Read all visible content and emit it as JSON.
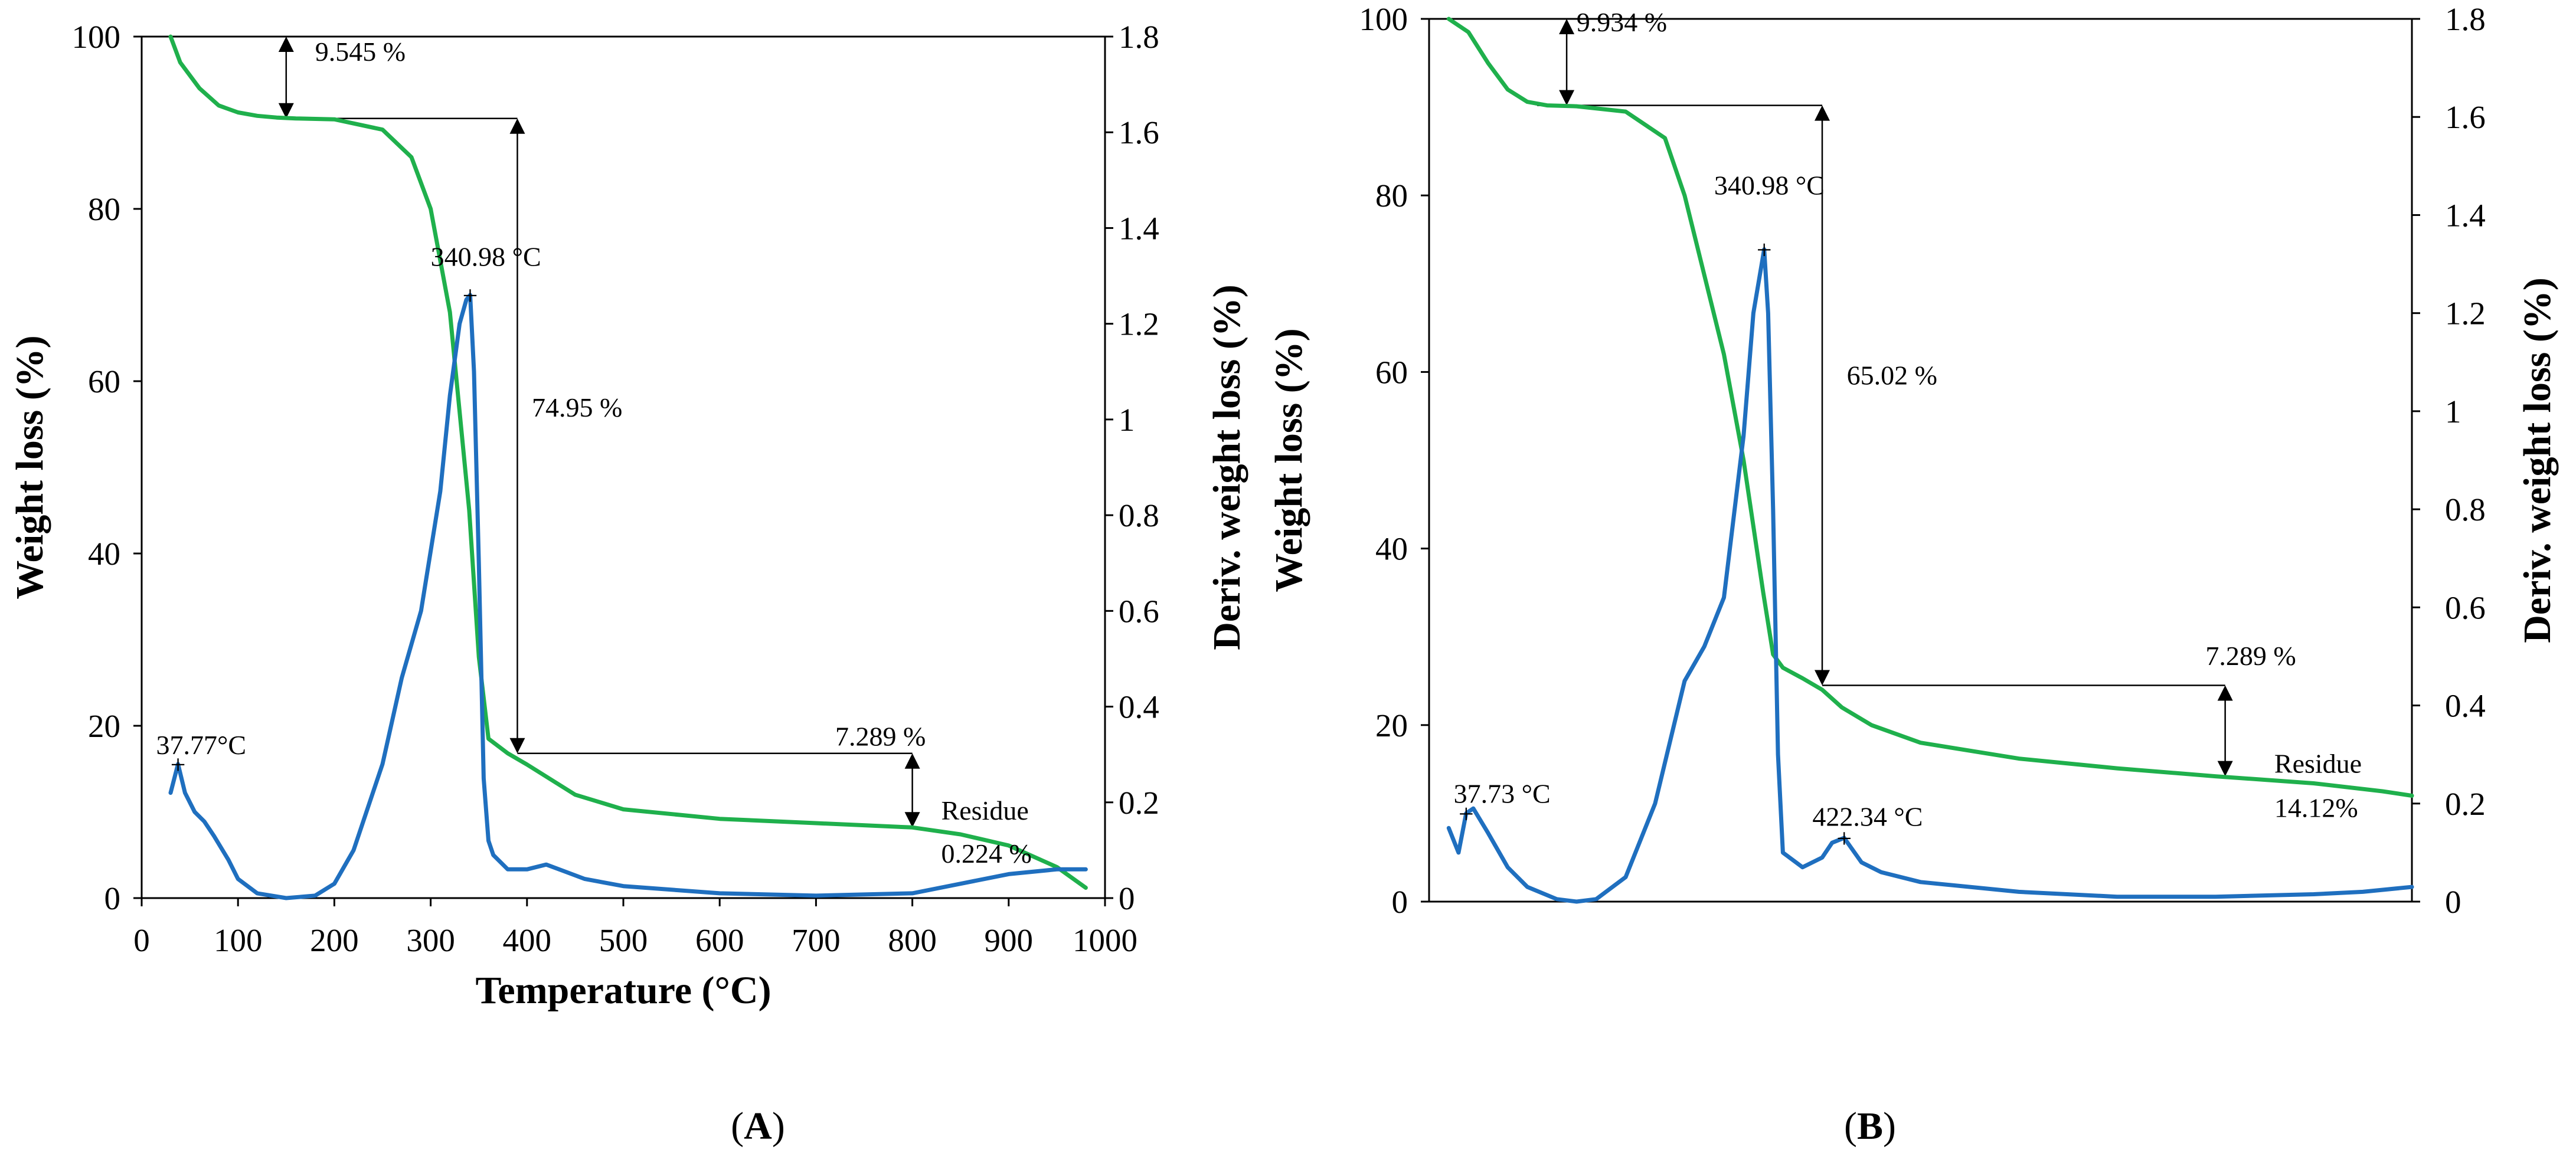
{
  "chart_data": [
    {
      "id": "A",
      "type": "line",
      "panel_label": "A",
      "xlabel": "Temperature (°C)",
      "ylabel_left": "Weight loss (%)",
      "ylabel_right": "Deriv. weight loss (%)",
      "xlim": [
        0,
        1000
      ],
      "ylim_left": [
        0,
        100
      ],
      "ylim_right": [
        0,
        1.8
      ],
      "xticks": [
        0,
        100,
        200,
        300,
        400,
        500,
        600,
        700,
        800,
        900,
        1000
      ],
      "yticks_left": [
        0,
        20,
        40,
        60,
        80,
        100
      ],
      "yticks_right": [
        "0",
        "0.2",
        "0.4",
        "0.6",
        "0.8",
        "1",
        "1.2",
        "1.4",
        "1.6",
        "1.8"
      ],
      "series": [
        {
          "name": "Weight loss",
          "axis": "left",
          "color": "#1fb04c",
          "x": [
            30,
            40,
            60,
            80,
            100,
            120,
            140,
            160,
            200,
            250,
            280,
            300,
            320,
            340,
            350,
            360,
            380,
            400,
            450,
            500,
            600,
            700,
            800,
            850,
            900,
            950,
            980
          ],
          "y": [
            100,
            97,
            94,
            92,
            91.2,
            90.8,
            90.6,
            90.5,
            90.4,
            89.2,
            86,
            80,
            68,
            45,
            28,
            18.5,
            16.8,
            15.5,
            12,
            10.3,
            9.2,
            8.7,
            8.2,
            7.4,
            6.1,
            3.6,
            1.2
          ]
        },
        {
          "name": "Deriv. weight loss",
          "axis": "right",
          "color": "#1f6fbf",
          "x": [
            30,
            37.77,
            45,
            55,
            65,
            75,
            90,
            100,
            120,
            150,
            180,
            200,
            220,
            250,
            270,
            290,
            310,
            320,
            330,
            337,
            340.98,
            345,
            350,
            355,
            360,
            365,
            380,
            400,
            420,
            440,
            460,
            500,
            600,
            700,
            800,
            850,
            900,
            950,
            980
          ],
          "y": [
            0.22,
            0.28,
            0.22,
            0.18,
            0.16,
            0.13,
            0.08,
            0.04,
            0.01,
            0.0,
            0.005,
            0.03,
            0.1,
            0.28,
            0.46,
            0.6,
            0.85,
            1.05,
            1.2,
            1.25,
            1.26,
            1.1,
            0.7,
            0.25,
            0.12,
            0.09,
            0.06,
            0.06,
            0.07,
            0.055,
            0.04,
            0.025,
            0.01,
            0.005,
            0.01,
            0.03,
            0.05,
            0.06,
            0.06
          ]
        }
      ],
      "annotations": [
        {
          "text": "9.545 %",
          "x": 180,
          "y": 97.2
        },
        {
          "text": "340.98 °C",
          "x": 300,
          "y": 73.4
        },
        {
          "text": "74.95 %",
          "x": 405,
          "y": 55.9
        },
        {
          "text": "37.77°C",
          "x": 15,
          "y": 16.7
        },
        {
          "text": "7.289 %",
          "x": 720,
          "y": 17.7
        },
        {
          "text": "Residue",
          "x": 830,
          "y": 9.1
        },
        {
          "text": "0.224 %",
          "x": 830,
          "y": 4.1
        }
      ],
      "marker_labels": [
        {
          "text": "+",
          "x": 340.98,
          "value": 1.26
        },
        {
          "text": "+",
          "x": 37.77,
          "value": 0.28
        }
      ]
    },
    {
      "id": "B",
      "type": "line",
      "panel_label": "B",
      "xlabel": "",
      "ylabel_left": "Weight loss (%)",
      "ylabel_right": "Deriv. weight loss (%)",
      "xlim": [
        0,
        1000
      ],
      "ylim_left": [
        0,
        100
      ],
      "ylim_right": [
        0,
        1.8
      ],
      "xticks": [],
      "yticks_left": [
        0,
        20,
        40,
        60,
        80,
        100
      ],
      "yticks_right": [
        "0",
        "0.2",
        "0.4",
        "0.6",
        "0.8",
        "1",
        "1.2",
        "1.4",
        "1.6",
        "1.8"
      ],
      "series": [
        {
          "name": "Weight loss",
          "axis": "left",
          "color": "#1fb04c",
          "x": [
            20,
            40,
            60,
            80,
            100,
            120,
            150,
            200,
            240,
            260,
            280,
            300,
            320,
            340,
            350,
            360,
            380,
            400,
            420,
            450,
            500,
            600,
            700,
            800,
            900,
            970,
            1000
          ],
          "y": [
            100,
            98.5,
            95,
            92,
            90.6,
            90.2,
            90.1,
            89.5,
            86.5,
            80,
            71,
            62,
            50,
            35,
            28,
            26.5,
            25.3,
            24,
            22,
            20,
            18,
            16.2,
            15.1,
            14.2,
            13.4,
            12.5,
            12
          ]
        },
        {
          "name": "Deriv. weight loss",
          "axis": "right",
          "color": "#1f6fbf",
          "x": [
            20,
            30,
            37.73,
            45,
            60,
            80,
            100,
            130,
            150,
            170,
            200,
            230,
            260,
            280,
            300,
            320,
            330,
            340.98,
            345,
            350,
            355,
            360,
            380,
            400,
            410,
            422.34,
            440,
            460,
            500,
            600,
            700,
            800,
            900,
            950,
            1000
          ],
          "y": [
            0.15,
            0.1,
            0.18,
            0.19,
            0.14,
            0.07,
            0.03,
            0.005,
            0.0,
            0.005,
            0.05,
            0.2,
            0.45,
            0.52,
            0.62,
            0.95,
            1.2,
            1.33,
            1.2,
            0.8,
            0.3,
            0.1,
            0.07,
            0.09,
            0.12,
            0.13,
            0.08,
            0.06,
            0.04,
            0.02,
            0.01,
            0.01,
            0.015,
            0.02,
            0.03
          ]
        }
      ],
      "annotations": [
        {
          "text": "9.934 %",
          "x": 150,
          "y": 98.6
        },
        {
          "text": "340.98 °C",
          "x": 290,
          "y": 80.1
        },
        {
          "text": "65.02 %",
          "x": 425,
          "y": 58.6
        },
        {
          "text": "37.73 °C",
          "x": 25,
          "y": 11.2
        },
        {
          "text": "7.289 %",
          "x": 790,
          "y": 26.8
        },
        {
          "text": "Residue",
          "x": 860,
          "y": 14.6
        },
        {
          "text": "14.12%",
          "x": 860,
          "y": 9.6
        },
        {
          "text": "422.34 °C",
          "x": 390,
          "y": 8.6
        }
      ],
      "marker_labels": [
        {
          "text": "+",
          "x": 340.98,
          "value": 1.33
        },
        {
          "text": "+",
          "x": 37.73,
          "value": 0.18
        },
        {
          "text": "+",
          "x": 422.34,
          "value": 0.13
        }
      ]
    }
  ]
}
